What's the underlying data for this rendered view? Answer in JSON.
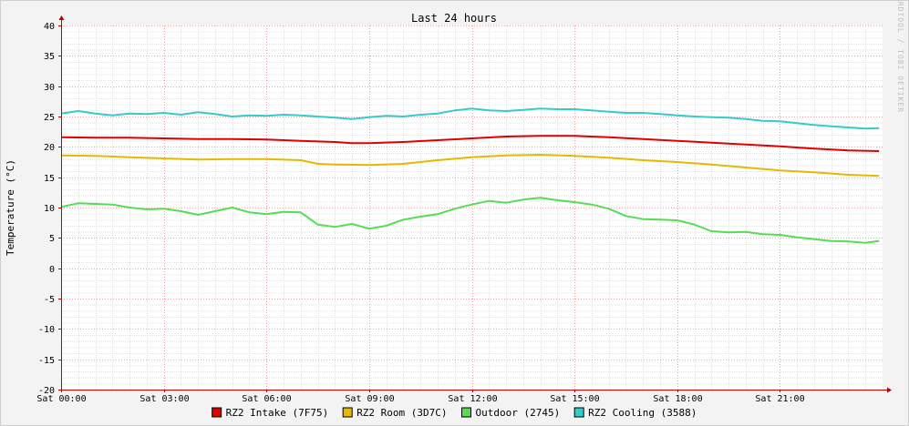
{
  "chart_data": {
    "type": "line",
    "title": "Last 24 hours",
    "ylabel": "Temperature (°C)",
    "watermark": "RRDTOOL / TOBI OETIKER",
    "ylim": [
      -20,
      40
    ],
    "yticks": [
      40,
      35,
      30,
      25,
      20,
      15,
      10,
      5,
      0,
      -5,
      -10,
      -15,
      -20
    ],
    "xlim": [
      0,
      24
    ],
    "x_unit": "hours since Sat 00:00",
    "xticks": [
      {
        "x": 0,
        "label": "Sat 00:00"
      },
      {
        "x": 3,
        "label": "Sat 03:00"
      },
      {
        "x": 6,
        "label": "Sat 06:00"
      },
      {
        "x": 9,
        "label": "Sat 09:00"
      },
      {
        "x": 12,
        "label": "Sat 12:00"
      },
      {
        "x": 15,
        "label": "Sat 15:00"
      },
      {
        "x": 18,
        "label": "Sat 18:00"
      },
      {
        "x": 21,
        "label": "Sat 21:00"
      }
    ],
    "grid": true,
    "legend_position": "bottom",
    "series": [
      {
        "name": "RZ2 Intake (7F75)",
        "color": "#e00000",
        "x": [
          0,
          1,
          2,
          3,
          4,
          5,
          6,
          7,
          8,
          8.5,
          9,
          10,
          11,
          12,
          13,
          14,
          15,
          16,
          17,
          18,
          19,
          20,
          21,
          22,
          23,
          23.9
        ],
        "y": [
          21.6,
          21.5,
          21.5,
          21.4,
          21.3,
          21.3,
          21.2,
          21.0,
          20.8,
          20.6,
          20.6,
          20.8,
          21.1,
          21.4,
          21.7,
          21.8,
          21.8,
          21.6,
          21.3,
          21.0,
          20.7,
          20.4,
          20.1,
          19.7,
          19.4,
          19.3
        ]
      },
      {
        "name": "RZ2 Room (3D7C)",
        "color": "#e6b800",
        "x": [
          0,
          1,
          2,
          3,
          4,
          5,
          6,
          7,
          7.5,
          8,
          9,
          10,
          11,
          12,
          13,
          14,
          15,
          16,
          17,
          18,
          19,
          20,
          21,
          22,
          23,
          23.9
        ],
        "y": [
          18.6,
          18.5,
          18.3,
          18.1,
          17.9,
          18.0,
          18.0,
          17.8,
          17.2,
          17.1,
          17.0,
          17.2,
          17.8,
          18.3,
          18.6,
          18.7,
          18.5,
          18.2,
          17.8,
          17.5,
          17.1,
          16.6,
          16.1,
          15.8,
          15.4,
          15.2
        ]
      },
      {
        "name": "Outdoor (2745)",
        "color": "#55dd55",
        "x": [
          0,
          0.5,
          1,
          1.5,
          2,
          2.5,
          3,
          3.5,
          4,
          4.5,
          5,
          5.5,
          6,
          6.5,
          7,
          7.5,
          8,
          8.5,
          9,
          9.5,
          10,
          10.5,
          11,
          11.5,
          12,
          12.5,
          13,
          13.5,
          14,
          14.5,
          15,
          15.5,
          16,
          16.5,
          17,
          17.5,
          18,
          18.5,
          19,
          19.5,
          20,
          20.5,
          21,
          21.5,
          22,
          22.5,
          23,
          23.5,
          23.9
        ],
        "y": [
          10.1,
          10.7,
          10.6,
          10.5,
          10.0,
          9.7,
          9.8,
          9.4,
          8.8,
          9.4,
          10.0,
          9.2,
          8.9,
          9.3,
          9.2,
          7.2,
          6.8,
          7.3,
          6.5,
          7.0,
          8.0,
          8.5,
          8.9,
          9.8,
          10.5,
          11.1,
          10.8,
          11.3,
          11.6,
          11.2,
          10.9,
          10.5,
          9.8,
          8.6,
          8.1,
          8.0,
          7.9,
          7.2,
          6.1,
          5.9,
          6.0,
          5.6,
          5.5,
          5.1,
          4.8,
          4.5,
          4.4,
          4.2,
          4.5
        ]
      },
      {
        "name": "RZ2 Cooling (3588)",
        "color": "#33cccc",
        "x": [
          0,
          0.5,
          1,
          1.5,
          2,
          2.5,
          3,
          3.5,
          4,
          4.5,
          5,
          5.5,
          6,
          6.5,
          7,
          7.5,
          8,
          8.5,
          9,
          9.5,
          10,
          10.5,
          11,
          11.5,
          12,
          12.5,
          13,
          13.5,
          14,
          14.5,
          15,
          15.5,
          16,
          16.5,
          17,
          17.5,
          18,
          18.5,
          19,
          19.5,
          20,
          20.5,
          21,
          21.5,
          22,
          22.5,
          23,
          23.5,
          23.9
        ],
        "y": [
          25.5,
          25.9,
          25.5,
          25.2,
          25.5,
          25.4,
          25.6,
          25.3,
          25.7,
          25.4,
          25.0,
          25.2,
          25.1,
          25.3,
          25.2,
          25.0,
          24.8,
          24.6,
          24.9,
          25.1,
          25.0,
          25.3,
          25.5,
          26.0,
          26.3,
          26.0,
          25.9,
          26.1,
          26.3,
          26.2,
          26.2,
          26.0,
          25.8,
          25.6,
          25.6,
          25.4,
          25.2,
          25.0,
          24.9,
          24.8,
          24.6,
          24.3,
          24.2,
          23.9,
          23.6,
          23.4,
          23.2,
          23.0,
          23.1
        ]
      }
    ]
  }
}
